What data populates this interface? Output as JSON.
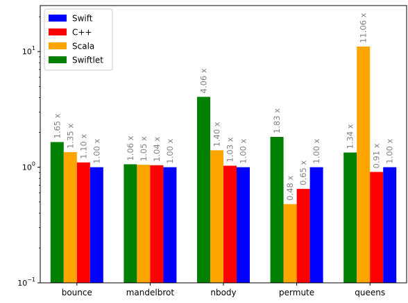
{
  "chart_data": {
    "type": "bar",
    "yscale": "log",
    "ylim": [
      0.1,
      25
    ],
    "y_ticks": [
      {
        "value": 0.1,
        "base": "10",
        "exp": "−1"
      },
      {
        "value": 1,
        "base": "10",
        "exp": "0"
      },
      {
        "value": 10,
        "base": "10",
        "exp": "1"
      }
    ],
    "categories": [
      "bounce",
      "mandelbrot",
      "nbody",
      "permute",
      "queens"
    ],
    "series": [
      {
        "name": "Swiftlet",
        "color": "#008000",
        "values": [
          1.65,
          1.06,
          4.06,
          1.83,
          1.34
        ],
        "labels": [
          "1.65 x",
          "1.06 x",
          "4.06 x",
          "1.83 x",
          "1.34 x"
        ]
      },
      {
        "name": "Scala",
        "color": "#ffa500",
        "values": [
          1.35,
          1.05,
          1.4,
          0.48,
          11.06
        ],
        "labels": [
          "1.35 x",
          "1.05 x",
          "1.40 x",
          "0.48 x",
          "11.06 x"
        ]
      },
      {
        "name": "C++",
        "color": "#ff0000",
        "values": [
          1.1,
          1.04,
          1.03,
          0.65,
          0.91
        ],
        "labels": [
          "1.10 x",
          "1.04 x",
          "1.03 x",
          "0.65 x",
          "0.91 x"
        ]
      },
      {
        "name": "Swift",
        "color": "#0000ff",
        "values": [
          1.0,
          1.0,
          1.0,
          1.0,
          1.0
        ],
        "labels": [
          "1.00 x",
          "1.00 x",
          "1.00 x",
          "1.00 x",
          "1.00 x"
        ]
      }
    ],
    "legend": {
      "position": "top-left",
      "order": [
        "Swift",
        "C++",
        "Scala",
        "Swiftlet"
      ]
    },
    "label_color": "#808080",
    "grid": false
  }
}
